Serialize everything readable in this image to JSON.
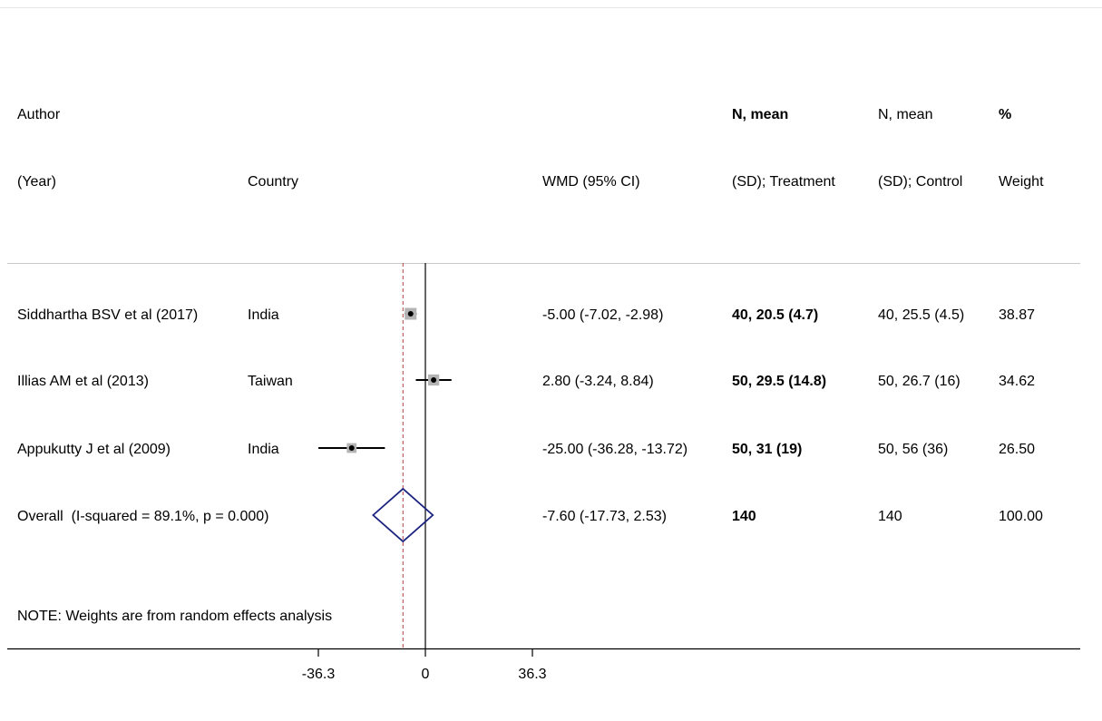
{
  "headers": {
    "author_l1": "Author",
    "author_l2": "(Year)",
    "country": "Country",
    "wmd": "WMD (95% CI)",
    "treat_l1": "N, mean",
    "treat_l2": "(SD); Treatment",
    "ctrl_l1": "N, mean",
    "ctrl_l2": "(SD); Control",
    "weight_l1": "%",
    "weight_l2": "Weight"
  },
  "note": "NOTE: Weights are from random effects analysis",
  "chart_data": {
    "type": "forest",
    "effect_measure": "WMD",
    "x_ticks": [
      -36.3,
      0,
      36.3
    ],
    "x_tick_labels": [
      "-36.3",
      "0",
      "36.3"
    ],
    "null_line": 0,
    "overall_line": -7.6,
    "studies": [
      {
        "author": "Siddhartha BSV et al (2017)",
        "country": "India",
        "est": -5.0,
        "lo": -7.02,
        "hi": -2.98,
        "ci_text": "-5.00 (-7.02, -2.98)",
        "treatment": "40, 20.5 (4.7)",
        "control": "40, 25.5 (4.5)",
        "weight": 38.87,
        "weight_text": "38.87"
      },
      {
        "author": "Illias AM et al (2013)",
        "country": "Taiwan",
        "est": 2.8,
        "lo": -3.24,
        "hi": 8.84,
        "ci_text": "2.80 (-3.24, 8.84)",
        "treatment": "50, 29.5 (14.8)",
        "control": "50, 26.7 (16)",
        "weight": 34.62,
        "weight_text": "34.62"
      },
      {
        "author": "Appukutty J et al (2009)",
        "country": "India",
        "est": -25.0,
        "lo": -36.28,
        "hi": -13.72,
        "ci_text": "-25.00 (-36.28, -13.72)",
        "treatment": "50, 31 (19)",
        "control": "50, 56 (36)",
        "weight": 26.5,
        "weight_text": "26.50"
      }
    ],
    "overall": {
      "label": "Overall  (I-squared = 89.1%, p = 0.000)",
      "est": -7.6,
      "lo": -17.73,
      "hi": 2.53,
      "ci_text": "-7.60 (-17.73, 2.53)",
      "treatment": "140",
      "control": "140",
      "weight_text": "100.00"
    }
  }
}
